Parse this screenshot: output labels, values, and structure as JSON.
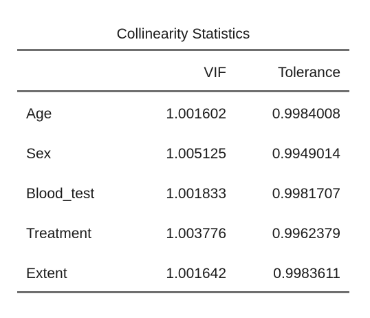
{
  "table": {
    "title": "Collinearity Statistics",
    "columns": {
      "name": "",
      "vif": "VIF",
      "tolerance": "Tolerance"
    },
    "rows": [
      {
        "name": "Age",
        "vif": "1.001602",
        "tolerance": "0.9984008"
      },
      {
        "name": "Sex",
        "vif": "1.005125",
        "tolerance": "0.9949014"
      },
      {
        "name": "Blood_test",
        "vif": "1.001833",
        "tolerance": "0.9981707"
      },
      {
        "name": "Treatment",
        "vif": "1.003776",
        "tolerance": "0.9962379"
      },
      {
        "name": "Extent",
        "vif": "1.001642",
        "tolerance": "0.9983611"
      }
    ]
  },
  "colors": {
    "text": "#1a1a1a",
    "rule": "#6f6f6f",
    "background": "#ffffff"
  }
}
